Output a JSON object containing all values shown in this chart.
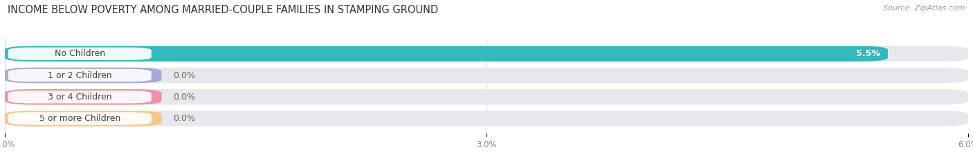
{
  "title": "INCOME BELOW POVERTY AMONG MARRIED-COUPLE FAMILIES IN STAMPING GROUND",
  "source": "Source: ZipAtlas.com",
  "categories": [
    "No Children",
    "1 or 2 Children",
    "3 or 4 Children",
    "5 or more Children"
  ],
  "values": [
    5.5,
    0.0,
    0.0,
    0.0
  ],
  "bar_colors": [
    "#33b8bc",
    "#a8a8d8",
    "#f090a8",
    "#f5c888"
  ],
  "value_labels": [
    "5.5%",
    "0.0%",
    "0.0%",
    "0.0%"
  ],
  "value_inside": [
    true,
    false,
    false,
    false
  ],
  "xlim": [
    0,
    6.0
  ],
  "xticks": [
    0.0,
    3.0,
    6.0
  ],
  "xtick_labels": [
    "0.0%",
    "3.0%",
    "6.0%"
  ],
  "bg_color": "#ffffff",
  "bar_bg_color": "#e8e8ec",
  "title_fontsize": 10.5,
  "source_fontsize": 8,
  "label_fontsize": 9,
  "value_fontsize": 9,
  "bar_height": 0.72,
  "bar_gap": 0.28
}
